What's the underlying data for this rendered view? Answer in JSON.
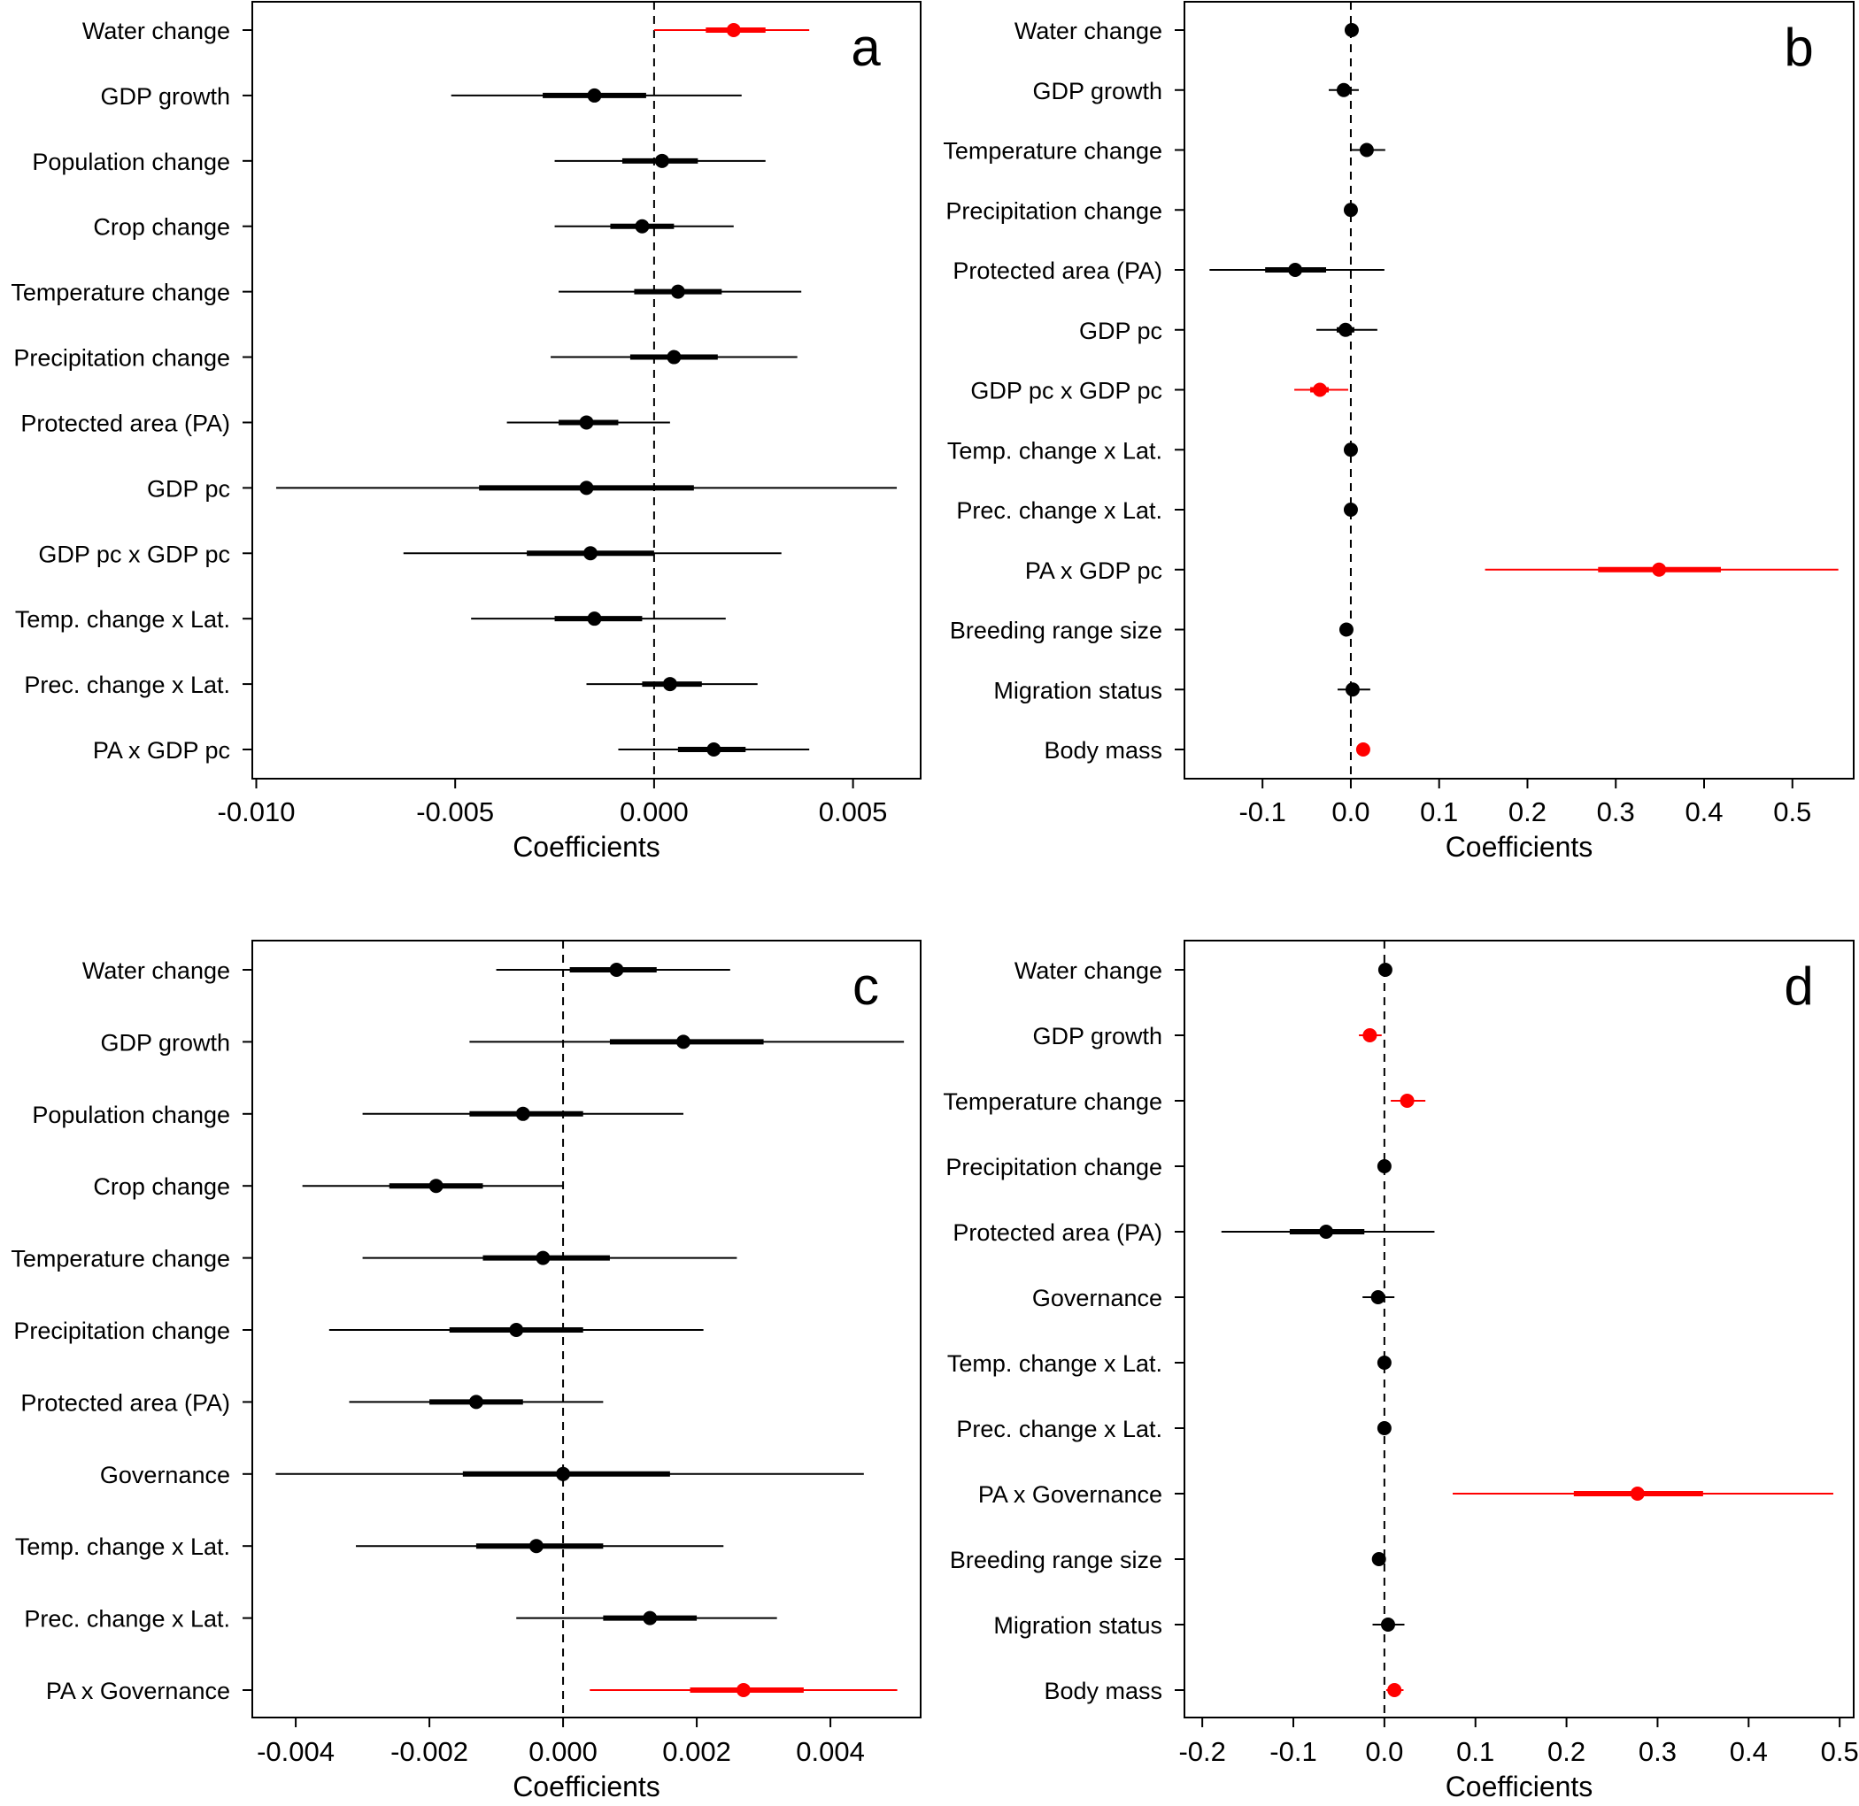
{
  "figure": {
    "colors": {
      "significant": "#ff0000",
      "default": "#000000"
    }
  },
  "chart_data": [
    {
      "panel": "a",
      "type": "forest",
      "xlabel": "Coefficients",
      "xlim": [
        -0.0101,
        0.0067
      ],
      "ticks": [
        -0.01,
        -0.005,
        0.0,
        0.005
      ],
      "tick_labels": [
        "-0.010",
        "-0.005",
        "0.000",
        "0.005"
      ],
      "reference_line": 0,
      "rows": [
        {
          "label": "Water change",
          "est": 0.002,
          "ci50": [
            0.0013,
            0.0028
          ],
          "ci95": [
            0.0,
            0.0039
          ],
          "significant": true
        },
        {
          "label": "GDP growth",
          "est": -0.0015,
          "ci50": [
            -0.0028,
            -0.0002
          ],
          "ci95": [
            -0.0051,
            0.0022
          ],
          "significant": false
        },
        {
          "label": "Population change",
          "est": 0.0002,
          "ci50": [
            -0.0008,
            0.0011
          ],
          "ci95": [
            -0.0025,
            0.0028
          ],
          "significant": false
        },
        {
          "label": "Crop change",
          "est": -0.0003,
          "ci50": [
            -0.0011,
            0.0005
          ],
          "ci95": [
            -0.0025,
            0.002
          ],
          "significant": false
        },
        {
          "label": "Temperature change",
          "est": 0.0006,
          "ci50": [
            -0.0005,
            0.0017
          ],
          "ci95": [
            -0.0024,
            0.0037
          ],
          "significant": false
        },
        {
          "label": "Precipitation change",
          "est": 0.0005,
          "ci50": [
            -0.0006,
            0.0016
          ],
          "ci95": [
            -0.0026,
            0.0036
          ],
          "significant": false
        },
        {
          "label": "Protected area (PA)",
          "est": -0.0017,
          "ci50": [
            -0.0024,
            -0.0009
          ],
          "ci95": [
            -0.0037,
            0.0004
          ],
          "significant": false
        },
        {
          "label": "GDP pc",
          "est": -0.0017,
          "ci50": [
            -0.0044,
            0.001
          ],
          "ci95": [
            -0.0095,
            0.0061
          ],
          "significant": false
        },
        {
          "label": "GDP pc x GDP pc",
          "est": -0.0016,
          "ci50": [
            -0.0032,
            0.0
          ],
          "ci95": [
            -0.0063,
            0.0032
          ],
          "significant": false
        },
        {
          "label": "Temp. change x Lat.",
          "est": -0.0015,
          "ci50": [
            -0.0025,
            -0.0003
          ],
          "ci95": [
            -0.0046,
            0.0018
          ],
          "significant": false
        },
        {
          "label": "Prec. change x Lat.",
          "est": 0.0004,
          "ci50": [
            -0.0003,
            0.0012
          ],
          "ci95": [
            -0.0017,
            0.0026
          ],
          "significant": false
        },
        {
          "label": "PA x GDP pc",
          "est": 0.0015,
          "ci50": [
            0.0006,
            0.0023
          ],
          "ci95": [
            -0.0009,
            0.0039
          ],
          "significant": false
        }
      ]
    },
    {
      "panel": "b",
      "type": "forest",
      "xlabel": "Coefficients",
      "xlim": [
        -0.1884,
        0.5694
      ],
      "ticks": [
        -0.1,
        0.0,
        0.1,
        0.2,
        0.3,
        0.4,
        0.5
      ],
      "tick_labels": [
        "-0.1",
        "0.0",
        "0.1",
        "0.2",
        "0.3",
        "0.4",
        "0.5"
      ],
      "reference_line": 0,
      "rows": [
        {
          "label": "Water change",
          "est": 0.001,
          "ci50": [
            0.001,
            0.001
          ],
          "ci95": [
            0.001,
            0.001
          ],
          "significant": false
        },
        {
          "label": "GDP growth",
          "est": -0.008,
          "ci50": [
            -0.014,
            -0.002
          ],
          "ci95": [
            -0.025,
            0.009
          ],
          "significant": false
        },
        {
          "label": "Temperature change",
          "est": 0.018,
          "ci50": [
            0.012,
            0.025
          ],
          "ci95": [
            0.0,
            0.039
          ],
          "significant": false
        },
        {
          "label": "Precipitation change",
          "est": 0.0,
          "ci50": [
            0.0,
            0.0
          ],
          "ci95": [
            0.0,
            0.0
          ],
          "significant": false
        },
        {
          "label": "Protected area (PA)",
          "est": -0.063,
          "ci50": [
            -0.097,
            -0.028
          ],
          "ci95": [
            -0.16,
            0.038
          ],
          "significant": false
        },
        {
          "label": "GDP pc",
          "est": -0.006,
          "ci50": [
            -0.016,
            0.004
          ],
          "ci95": [
            -0.039,
            0.03
          ],
          "significant": false
        },
        {
          "label": "GDP pc x GDP pc",
          "est": -0.035,
          "ci50": [
            -0.046,
            -0.025
          ],
          "ci95": [
            -0.064,
            -0.003
          ],
          "significant": true
        },
        {
          "label": "Temp. change x Lat.",
          "est": 0.0,
          "ci50": [
            0.0,
            0.0
          ],
          "ci95": [
            0.0,
            0.0
          ],
          "significant": false
        },
        {
          "label": "Prec. change x Lat.",
          "est": 0.0,
          "ci50": [
            0.0,
            0.0
          ],
          "ci95": [
            0.0,
            0.0
          ],
          "significant": false
        },
        {
          "label": "PA x GDP pc",
          "est": 0.349,
          "ci50": [
            0.28,
            0.419
          ],
          "ci95": [
            0.152,
            0.552
          ],
          "significant": true
        },
        {
          "label": "Breeding range size",
          "est": -0.005,
          "ci50": [
            -0.005,
            -0.005
          ],
          "ci95": [
            -0.005,
            -0.005
          ],
          "significant": false
        },
        {
          "label": "Migration status",
          "est": 0.002,
          "ci50": [
            -0.004,
            0.009
          ],
          "ci95": [
            -0.015,
            0.022
          ],
          "significant": false
        },
        {
          "label": "Body mass",
          "est": 0.014,
          "ci50": [
            0.014,
            0.014
          ],
          "ci95": [
            0.014,
            0.014
          ],
          "significant": true
        }
      ]
    },
    {
      "panel": "c",
      "type": "forest",
      "xlabel": "Coefficients",
      "xlim": [
        -0.00465,
        0.00535
      ],
      "ticks": [
        -0.004,
        -0.002,
        0.0,
        0.002,
        0.004
      ],
      "tick_labels": [
        "-0.004",
        "-0.002",
        "0.000",
        "0.002",
        "0.004"
      ],
      "reference_line": 0,
      "rows": [
        {
          "label": "Water change",
          "est": 0.0008,
          "ci50": [
            0.0001,
            0.0014
          ],
          "ci95": [
            -0.001,
            0.0025
          ],
          "significant": false
        },
        {
          "label": "GDP growth",
          "est": 0.0018,
          "ci50": [
            0.0007,
            0.003
          ],
          "ci95": [
            -0.0014,
            0.0051
          ],
          "significant": false
        },
        {
          "label": "Population change",
          "est": -0.0006,
          "ci50": [
            -0.0014,
            0.0003
          ],
          "ci95": [
            -0.003,
            0.0018
          ],
          "significant": false
        },
        {
          "label": "Crop change",
          "est": -0.0019,
          "ci50": [
            -0.0026,
            -0.0012
          ],
          "ci95": [
            -0.0039,
            0.0
          ],
          "significant": false
        },
        {
          "label": "Temperature change",
          "est": -0.0003,
          "ci50": [
            -0.0012,
            0.0007
          ],
          "ci95": [
            -0.003,
            0.0026
          ],
          "significant": false
        },
        {
          "label": "Precipitation change",
          "est": -0.0007,
          "ci50": [
            -0.0017,
            0.0003
          ],
          "ci95": [
            -0.0035,
            0.0021
          ],
          "significant": false
        },
        {
          "label": "Protected area (PA)",
          "est": -0.0013,
          "ci50": [
            -0.002,
            -0.0006
          ],
          "ci95": [
            -0.0032,
            0.0006
          ],
          "significant": false
        },
        {
          "label": "Governance",
          "est": 0.0,
          "ci50": [
            -0.0015,
            0.0016
          ],
          "ci95": [
            -0.0043,
            0.0045
          ],
          "significant": false
        },
        {
          "label": "Temp. change x Lat.",
          "est": -0.0004,
          "ci50": [
            -0.0013,
            0.0006
          ],
          "ci95": [
            -0.0031,
            0.0024
          ],
          "significant": false
        },
        {
          "label": "Prec. change x Lat.",
          "est": 0.0013,
          "ci50": [
            0.0006,
            0.002
          ],
          "ci95": [
            -0.0007,
            0.0032
          ],
          "significant": false
        },
        {
          "label": "PA x Governance",
          "est": 0.0027,
          "ci50": [
            0.0019,
            0.0036
          ],
          "ci95": [
            0.0004,
            0.005
          ],
          "significant": true
        }
      ]
    },
    {
      "panel": "d",
      "type": "forest",
      "xlabel": "Coefficients",
      "xlim": [
        -0.2196,
        0.5154
      ],
      "ticks": [
        -0.2,
        -0.1,
        0.0,
        0.1,
        0.2,
        0.3,
        0.4,
        0.5
      ],
      "tick_labels": [
        "-0.2",
        "-0.1",
        "0.0",
        "0.1",
        "0.2",
        "0.3",
        "0.4",
        "0.5"
      ],
      "reference_line": 0,
      "rows": [
        {
          "label": "Water change",
          "est": 0.001,
          "ci50": [
            0.001,
            0.001
          ],
          "ci95": [
            0.001,
            0.001
          ],
          "significant": false
        },
        {
          "label": "GDP growth",
          "est": -0.016,
          "ci50": [
            -0.022,
            -0.01
          ],
          "ci95": [
            -0.028,
            -0.003
          ],
          "significant": true
        },
        {
          "label": "Temperature change",
          "est": 0.025,
          "ci50": [
            0.018,
            0.032
          ],
          "ci95": [
            0.007,
            0.045
          ],
          "significant": true
        },
        {
          "label": "Precipitation change",
          "est": 0.0,
          "ci50": [
            0.0,
            0.0
          ],
          "ci95": [
            0.0,
            0.0
          ],
          "significant": false
        },
        {
          "label": "Protected area (PA)",
          "est": -0.064,
          "ci50": [
            -0.104,
            -0.022
          ],
          "ci95": [
            -0.179,
            0.055
          ],
          "significant": false
        },
        {
          "label": "Governance",
          "est": -0.007,
          "ci50": [
            -0.012,
            -0.001
          ],
          "ci95": [
            -0.024,
            0.011
          ],
          "significant": false
        },
        {
          "label": "Temp. change x Lat.",
          "est": 0.0,
          "ci50": [
            0.0,
            0.0
          ],
          "ci95": [
            0.0,
            0.0
          ],
          "significant": false
        },
        {
          "label": "Prec. change x Lat.",
          "est": 0.0,
          "ci50": [
            0.0,
            0.0
          ],
          "ci95": [
            0.0,
            0.0
          ],
          "significant": false
        },
        {
          "label": "PA x Governance",
          "est": 0.278,
          "ci50": [
            0.208,
            0.35
          ],
          "ci95": [
            0.075,
            0.493
          ],
          "significant": true
        },
        {
          "label": "Breeding range size",
          "est": -0.006,
          "ci50": [
            -0.006,
            -0.006
          ],
          "ci95": [
            -0.006,
            -0.006
          ],
          "significant": false
        },
        {
          "label": "Migration status",
          "est": 0.004,
          "ci50": [
            -0.003,
            0.01
          ],
          "ci95": [
            -0.013,
            0.022
          ],
          "significant": false
        },
        {
          "label": "Body mass",
          "est": 0.011,
          "ci50": [
            0.005,
            0.016
          ],
          "ci95": [
            0.002,
            0.021
          ],
          "significant": true
        }
      ]
    }
  ]
}
